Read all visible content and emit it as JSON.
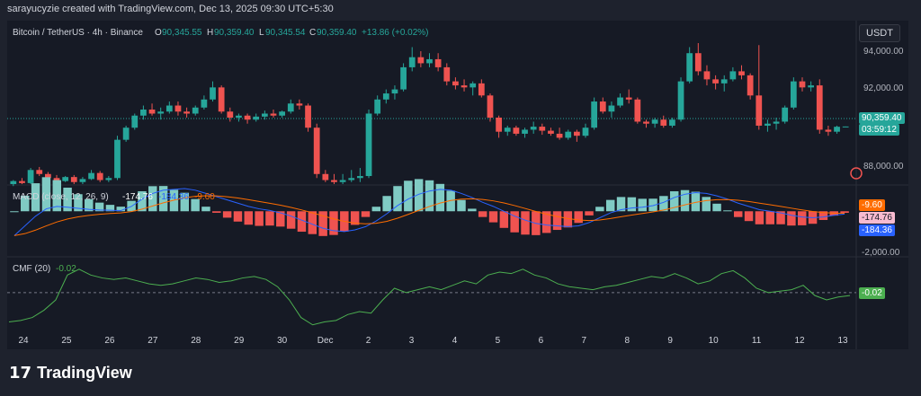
{
  "header": {
    "attribution": "sarayucyzie created with TradingView.com, Dec 13, 2025 09:30 UTC+5:30"
  },
  "symbol": {
    "name": "Bitcoin / TetherUS · 4h · Binance",
    "o_label": "O",
    "o": "90,345.55",
    "h_label": "H",
    "h": "90,359.40",
    "l_label": "L",
    "l": "90,345.54",
    "c_label": "C",
    "c": "90,359.40",
    "change": "+13.86 (+0.02%)"
  },
  "currency_button": "USDT",
  "price_axis": {
    "ticks": [
      "94,000.00",
      "92,000.00",
      "88,000.00"
    ],
    "last_price": "90,359.40",
    "countdown": "03:59:12"
  },
  "macd": {
    "label": "MACD (close, 12, 26, 9)",
    "value_main": "-174.76",
    "value_signal": "-184.36",
    "value_hist": "-9.60",
    "axis_tick": "-2,000.00",
    "pill_hist": "-9.60",
    "pill_main": "-174.76",
    "pill_signal": "-184.36"
  },
  "cmf": {
    "label": "CMF (20)",
    "value": "-0.02",
    "pill": "-0.02"
  },
  "time_axis": [
    "24",
    "25",
    "26",
    "27",
    "28",
    "29",
    "30",
    "Dec",
    "2",
    "3",
    "4",
    "5",
    "6",
    "7",
    "8",
    "9",
    "10",
    "11",
    "12",
    "13"
  ],
  "brand": "TradingView",
  "colors": {
    "up": "#26a69a",
    "down": "#ef5350",
    "macd": "#2962ff",
    "signal": "#ff6d00",
    "cmf": "#4caf50"
  },
  "chart_data": {
    "type": "candlestick",
    "interval": "4h",
    "ylim": [
      87500,
      94500
    ],
    "candles_ohlc": [
      [
        87500,
        87700,
        87400,
        87650
      ],
      [
        87650,
        87800,
        87500,
        87550
      ],
      [
        87550,
        88300,
        87500,
        88200
      ],
      [
        88200,
        88350,
        87900,
        88000
      ],
      [
        88000,
        88100,
        87700,
        87800
      ],
      [
        87800,
        87950,
        87550,
        87650
      ],
      [
        87650,
        87900,
        87600,
        87850
      ],
      [
        87850,
        87950,
        87500,
        87600
      ],
      [
        87600,
        87850,
        87500,
        87750
      ],
      [
        87750,
        88200,
        87700,
        88050
      ],
      [
        88050,
        88150,
        87600,
        87700
      ],
      [
        87700,
        87900,
        87600,
        87800
      ],
      [
        87800,
        89900,
        87700,
        89700
      ],
      [
        89700,
        90400,
        89600,
        90300
      ],
      [
        90300,
        91000,
        90200,
        90900
      ],
      [
        90900,
        91400,
        90700,
        91200
      ],
      [
        91200,
        91500,
        90900,
        91000
      ],
      [
        91000,
        91300,
        90700,
        91100
      ],
      [
        91100,
        91600,
        91000,
        91400
      ],
      [
        91400,
        91600,
        90900,
        91100
      ],
      [
        91100,
        91300,
        90800,
        91000
      ],
      [
        91000,
        91400,
        90900,
        91300
      ],
      [
        91300,
        91900,
        91200,
        91700
      ],
      [
        91700,
        92600,
        91600,
        92300
      ],
      [
        92300,
        92400,
        91000,
        91100
      ],
      [
        91100,
        91300,
        90600,
        90800
      ],
      [
        90800,
        91000,
        90600,
        90900
      ],
      [
        90900,
        91000,
        90500,
        90700
      ],
      [
        90700,
        91000,
        90600,
        90850
      ],
      [
        90850,
        91150,
        90700,
        91000
      ],
      [
        91000,
        91200,
        90800,
        90900
      ],
      [
        90900,
        91150,
        90800,
        91100
      ],
      [
        91100,
        91700,
        91000,
        91500
      ],
      [
        91500,
        91700,
        91200,
        91400
      ],
      [
        91400,
        91500,
        90100,
        90300
      ],
      [
        90300,
        90500,
        87800,
        88000
      ],
      [
        88000,
        88200,
        87600,
        87700
      ],
      [
        87700,
        88000,
        87500,
        87600
      ],
      [
        87600,
        88000,
        87500,
        87700
      ],
      [
        87700,
        88200,
        87600,
        87800
      ],
      [
        87800,
        88300,
        87600,
        87900
      ],
      [
        87900,
        91200,
        87800,
        91000
      ],
      [
        91000,
        91900,
        90900,
        91700
      ],
      [
        91700,
        92200,
        91500,
        92000
      ],
      [
        92000,
        92400,
        91700,
        92200
      ],
      [
        92200,
        93500,
        92100,
        93300
      ],
      [
        93300,
        94300,
        93100,
        93800
      ],
      [
        93800,
        94100,
        93300,
        93500
      ],
      [
        93500,
        94000,
        93300,
        93700
      ],
      [
        93700,
        94000,
        93100,
        93300
      ],
      [
        93300,
        93500,
        92400,
        92600
      ],
      [
        92600,
        92800,
        92200,
        92400
      ],
      [
        92400,
        92700,
        92100,
        92300
      ],
      [
        92300,
        92600,
        91900,
        92500
      ],
      [
        92500,
        92700,
        91800,
        91900
      ],
      [
        91900,
        92000,
        90600,
        90800
      ],
      [
        90800,
        90900,
        89800,
        90100
      ],
      [
        90100,
        90400,
        89900,
        90300
      ],
      [
        90300,
        90400,
        89900,
        90000
      ],
      [
        90000,
        90300,
        89800,
        90200
      ],
      [
        90200,
        90600,
        90000,
        90350
      ],
      [
        90350,
        90500,
        89950,
        90150
      ],
      [
        90150,
        90300,
        89900,
        90000
      ],
      [
        90000,
        90300,
        89700,
        89800
      ],
      [
        89800,
        90200,
        89700,
        90100
      ],
      [
        90100,
        90200,
        89600,
        89900
      ],
      [
        89900,
        90500,
        89800,
        90300
      ],
      [
        90300,
        91800,
        90200,
        91600
      ],
      [
        91600,
        91800,
        91000,
        91100
      ],
      [
        91100,
        91600,
        90800,
        91400
      ],
      [
        91400,
        92000,
        91300,
        91800
      ],
      [
        91800,
        92200,
        91500,
        91700
      ],
      [
        91700,
        91800,
        90500,
        90600
      ],
      [
        90600,
        90700,
        90300,
        90500
      ],
      [
        90500,
        90800,
        90300,
        90700
      ],
      [
        90700,
        90900,
        90300,
        90400
      ],
      [
        90400,
        90800,
        90300,
        90700
      ],
      [
        90700,
        92800,
        90600,
        92600
      ],
      [
        92600,
        94300,
        92500,
        94000
      ],
      [
        94000,
        94500,
        92900,
        93100
      ],
      [
        93100,
        93400,
        92400,
        92700
      ],
      [
        92700,
        92900,
        92200,
        92500
      ],
      [
        92500,
        92900,
        92100,
        92700
      ],
      [
        92700,
        93300,
        92600,
        93100
      ],
      [
        93100,
        93400,
        92700,
        92900
      ],
      [
        92900,
        93000,
        91700,
        91900
      ],
      [
        91900,
        94400,
        90200,
        90400
      ],
      [
        90400,
        90700,
        90100,
        90500
      ],
      [
        90500,
        90800,
        90200,
        90600
      ],
      [
        90600,
        91400,
        90500,
        91300
      ],
      [
        91300,
        92800,
        91200,
        92600
      ],
      [
        92600,
        92800,
        92100,
        92300
      ],
      [
        92300,
        92600,
        92100,
        92400
      ],
      [
        92400,
        92700,
        90000,
        90200
      ],
      [
        90200,
        90400,
        89900,
        90100
      ],
      [
        90100,
        90400,
        90000,
        90345.55
      ],
      [
        90345.55,
        90359.4,
        90345.54,
        90359.4
      ]
    ],
    "macd": {
      "ylim": [
        -2700,
        1400
      ],
      "macd_line": [
        -1500,
        -900,
        -300,
        150,
        300,
        250,
        180,
        120,
        80,
        60,
        40,
        300,
        750,
        1100,
        1300,
        1350,
        1400,
        1300,
        1100,
        900,
        700,
        500,
        300,
        150,
        50,
        -100,
        -300,
        -550,
        -800,
        -1050,
        -1200,
        -1250,
        -1150,
        -950,
        -600,
        -150,
        350,
        750,
        1050,
        1250,
        1350,
        1300,
        1100,
        850,
        550,
        300,
        0,
        -300,
        -550,
        -750,
        -850,
        -900,
        -950,
        -900,
        -700,
        -400,
        -100,
        100,
        200,
        250,
        350,
        550,
        850,
        1050,
        1150,
        1100,
        950,
        750,
        500,
        300,
        100,
        0,
        -100,
        -250,
        -350,
        -400,
        -350,
        -250,
        -174.76
      ]
    },
    "cmf": {
      "ylim": [
        -0.24,
        0.22
      ],
      "values": [
        -0.2,
        -0.19,
        -0.17,
        -0.12,
        -0.05,
        0.12,
        0.16,
        0.12,
        0.1,
        0.09,
        0.1,
        0.08,
        0.06,
        0.05,
        0.06,
        0.08,
        0.1,
        0.09,
        0.07,
        0.08,
        0.1,
        0.11,
        0.09,
        0.04,
        -0.05,
        -0.17,
        -0.22,
        -0.2,
        -0.19,
        -0.15,
        -0.13,
        -0.14,
        -0.05,
        0.03,
        0.0,
        0.02,
        0.04,
        0.02,
        0.05,
        0.08,
        0.06,
        0.12,
        0.14,
        0.13,
        0.16,
        0.12,
        0.1,
        0.06,
        0.04,
        0.03,
        0.02,
        0.04,
        0.05,
        0.07,
        0.09,
        0.11,
        0.1,
        0.13,
        0.1,
        0.06,
        0.08,
        0.13,
        0.15,
        0.1,
        0.03,
        0.0,
        0.01,
        0.02,
        0.05,
        -0.02,
        -0.05,
        -0.03,
        -0.02
      ]
    }
  }
}
